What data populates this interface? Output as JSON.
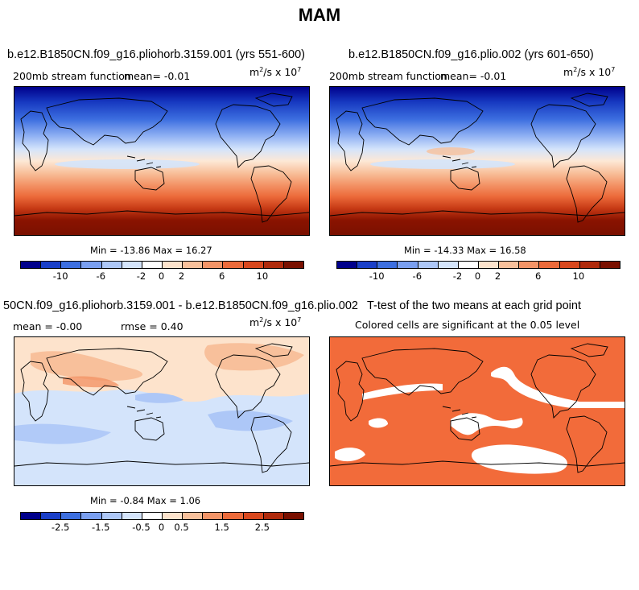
{
  "figure_title": "MAM",
  "panels": [
    {
      "title": "b.e12.B1850CN.f09_g16.pliohorb.3159.001 (yrs 551-600)",
      "left_label": "200mb stream function",
      "mean_label": "mean=",
      "mean_value": "-0.01",
      "units_base": "m",
      "units_exp1": "2",
      "units_mid": "/s x 10",
      "units_exp2": "7",
      "min_label": "Min =",
      "min_value": "-13.86",
      "max_label": "Max =",
      "max_value": "16.27"
    },
    {
      "title": "b.e12.B1850CN.f09_g16.plio.002 (yrs 601-650)",
      "left_label": "200mb stream function",
      "mean_label": "mean=",
      "mean_value": "-0.01",
      "units_base": "m",
      "units_exp1": "2",
      "units_mid": "/s x 10",
      "units_exp2": "7",
      "min_label": "Min =",
      "min_value": "-14.33",
      "max_label": "Max =",
      "max_value": "16.58"
    },
    {
      "title": "50CN.f09_g16.pliohorb.3159.001 - b.e12.B1850CN.f09_g16.plio.002",
      "mean_label": "mean =",
      "mean_value": "-0.00",
      "rmse_label": "rmse =",
      "rmse_value": "0.40",
      "units_base": "m",
      "units_exp1": "2",
      "units_mid": "/s x 10",
      "units_exp2": "7",
      "min_label": "Min =",
      "min_value": "-0.84",
      "max_label": "Max =",
      "max_value": "1.06"
    },
    {
      "title": "T-test of the two means at each grid point",
      "subtitle": "Colored cells are significant at the 0.05 level"
    }
  ],
  "colorbars": [
    {
      "ticks": [
        "-10",
        "-6",
        "-2",
        "0",
        "2",
        "6",
        "10"
      ]
    },
    {
      "ticks": [
        "-10",
        "-6",
        "-2",
        "0",
        "2",
        "6",
        "10"
      ]
    },
    {
      "ticks": [
        "-2.5",
        "-1.5",
        "-0.5",
        "0",
        "0.5",
        "1.5",
        "2.5"
      ]
    }
  ],
  "palette": [
    "#00008b",
    "#1a3fc8",
    "#3d6fe0",
    "#7a9ff0",
    "#adc7f7",
    "#d4e4fb",
    "#ffffff",
    "#fde3cc",
    "#f8c09b",
    "#f39467",
    "#ec6a3a",
    "#d9481e",
    "#b02a0c",
    "#7a1000"
  ],
  "ttest_color": "#f26b3a",
  "chart_data": [
    {
      "type": "heatmap",
      "title": "b.e12.B1850CN.f09_g16.pliohorb.3159.001 (yrs 551-600)",
      "variable": "200mb stream function",
      "units": "m^2/s x 10^7",
      "mean": -0.01,
      "min": -13.86,
      "max": 16.27,
      "levels": [
        -12,
        -10,
        -8,
        -6,
        -4,
        -2,
        0,
        2,
        4,
        6,
        8,
        10,
        12
      ]
    },
    {
      "type": "heatmap",
      "title": "b.e12.B1850CN.f09_g16.plio.002 (yrs 601-650)",
      "variable": "200mb stream function",
      "units": "m^2/s x 10^7",
      "mean": -0.01,
      "min": -14.33,
      "max": 16.58,
      "levels": [
        -12,
        -10,
        -8,
        -6,
        -4,
        -2,
        0,
        2,
        4,
        6,
        8,
        10,
        12
      ]
    },
    {
      "type": "heatmap",
      "title": "50CN.f09_g16.pliohorb.3159.001 - b.e12.B1850CN.f09_g16.plio.002",
      "units": "m^2/s x 10^7",
      "mean": -0.0,
      "rmse": 0.4,
      "min": -0.84,
      "max": 1.06,
      "levels": [
        -3,
        -2.5,
        -2,
        -1.5,
        -1,
        -0.5,
        0,
        0.5,
        1,
        1.5,
        2,
        2.5,
        3
      ]
    },
    {
      "type": "heatmap",
      "title": "T-test of the two means at each grid point",
      "note": "Colored cells are significant at the 0.05 level"
    }
  ]
}
